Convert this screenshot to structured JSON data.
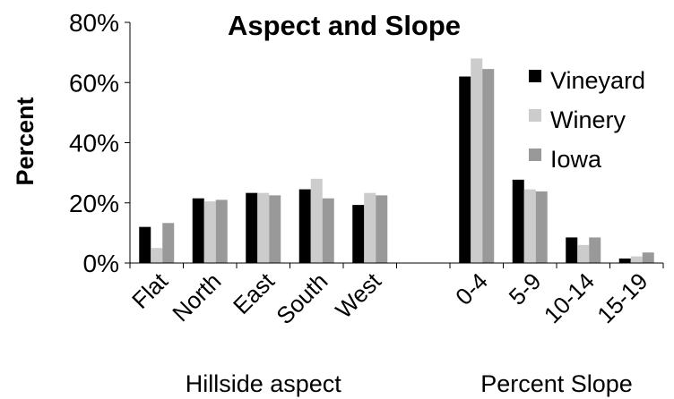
{
  "chart_data": {
    "type": "bar",
    "title": "Aspect and Slope",
    "ylabel": "Percent",
    "ylim": [
      0,
      80
    ],
    "yticks": [
      {
        "value": 0,
        "label": "0%"
      },
      {
        "value": 20,
        "label": "20%"
      },
      {
        "value": 40,
        "label": "40%"
      },
      {
        "value": 60,
        "label": "60%"
      },
      {
        "value": 80,
        "label": "80%"
      }
    ],
    "groups": [
      {
        "label": "Hillside aspect",
        "categories": [
          "Flat",
          "North",
          "East",
          "South",
          "West"
        ]
      },
      {
        "label": "Percent Slope",
        "categories": [
          "0-4",
          "5-9",
          "10-14",
          "15-19"
        ]
      }
    ],
    "categories": [
      "Flat",
      "North",
      "East",
      "South",
      "West",
      "",
      "0-4",
      "5-9",
      "10-14",
      "15-19"
    ],
    "series": [
      {
        "name": "Vineyard",
        "color": "#000000",
        "values": [
          12,
          21.5,
          23.3,
          24.5,
          19.3,
          null,
          62,
          27.7,
          8.5,
          1.5
        ]
      },
      {
        "name": "Winery",
        "color": "#cccccc",
        "values": [
          5,
          20.5,
          23.3,
          28,
          23.3,
          null,
          68,
          24.5,
          6,
          2.2
        ]
      },
      {
        "name": "Iowa",
        "color": "#999999",
        "values": [
          13.3,
          21,
          22.5,
          21.5,
          22.5,
          null,
          64.5,
          23.8,
          8.5,
          3.5
        ]
      }
    ],
    "legend_position": "right",
    "grid": false
  }
}
